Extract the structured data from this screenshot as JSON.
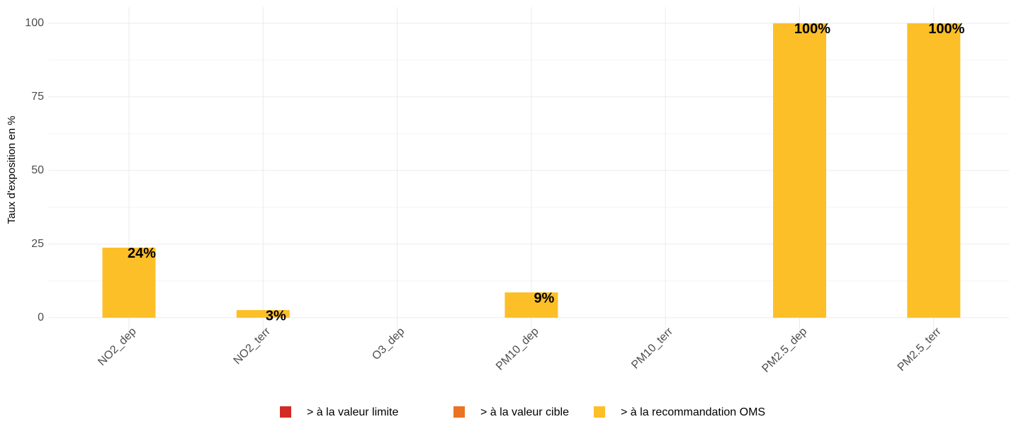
{
  "chart_data": {
    "type": "stacked_bar",
    "y_label": "Taux d'exposition en %",
    "categories": [
      "NO2_dep",
      "NO2_terr",
      "O3_dep",
      "PM10_dep",
      "PM10_terr",
      "PM2.5_dep",
      "PM2.5_terr"
    ],
    "series": [
      {
        "name": "> à la valeur limite",
        "color": "#d42a27",
        "values": [
          0,
          0,
          0,
          0,
          0,
          0,
          0
        ]
      },
      {
        "name": "> à la valeur cible",
        "color": "#ea7324",
        "values": [
          0,
          0,
          0,
          0,
          0,
          0,
          0
        ]
      },
      {
        "name": "> à la recommandation OMS",
        "color": "#fdbf28",
        "values": [
          23.8,
          2.6,
          0,
          8.6,
          0,
          100,
          100
        ],
        "value_labels": [
          "24%",
          "3%",
          null,
          "9%",
          null,
          "100%",
          "100%"
        ]
      }
    ],
    "ylim": [
      -4.6,
      105.5
    ],
    "yticks": [
      0,
      25,
      50,
      75,
      100
    ],
    "grid": true,
    "legend": "bottom"
  }
}
